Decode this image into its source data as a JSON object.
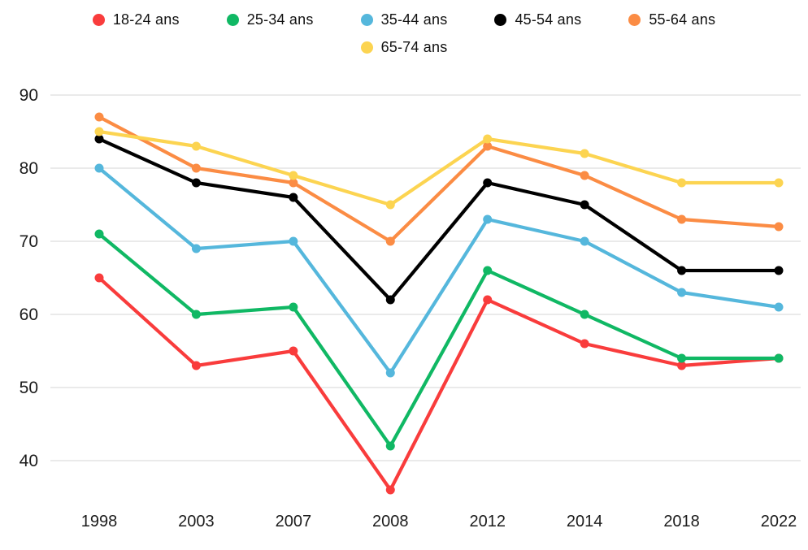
{
  "chart_data": {
    "type": "line",
    "title": "",
    "xlabel": "",
    "ylabel": "",
    "categories": [
      "1998",
      "2003",
      "2007",
      "2008",
      "2012",
      "2014",
      "2018",
      "2022"
    ],
    "series": [
      {
        "name": "18-24 ans",
        "color": "#F93C3C",
        "values": [
          65,
          53,
          55,
          36,
          62,
          56,
          53,
          54
        ]
      },
      {
        "name": "25-34 ans",
        "color": "#10B864",
        "values": [
          71,
          60,
          61,
          42,
          66,
          60,
          54,
          54
        ]
      },
      {
        "name": "35-44 ans",
        "color": "#55B7DC",
        "values": [
          80,
          69,
          70,
          52,
          73,
          70,
          63,
          61
        ]
      },
      {
        "name": "45-54 ans",
        "color": "#000000",
        "values": [
          84,
          78,
          76,
          62,
          78,
          75,
          66,
          66
        ]
      },
      {
        "name": "55-64 ans",
        "color": "#FB8C44",
        "values": [
          87,
          80,
          78,
          70,
          83,
          79,
          73,
          72
        ]
      },
      {
        "name": "65-74 ans",
        "color": "#FCD451",
        "values": [
          85,
          83,
          79,
          75,
          84,
          82,
          78,
          78
        ]
      }
    ],
    "yticks": [
      90,
      80,
      70,
      60,
      50,
      40
    ],
    "ylim": [
      34,
      92
    ],
    "grid": "horizontal-only",
    "gridline_color": "#DDDDDD",
    "tick_label_color": "#1C1C1C",
    "legend_position": "top",
    "legend_rows": [
      5,
      1
    ]
  }
}
